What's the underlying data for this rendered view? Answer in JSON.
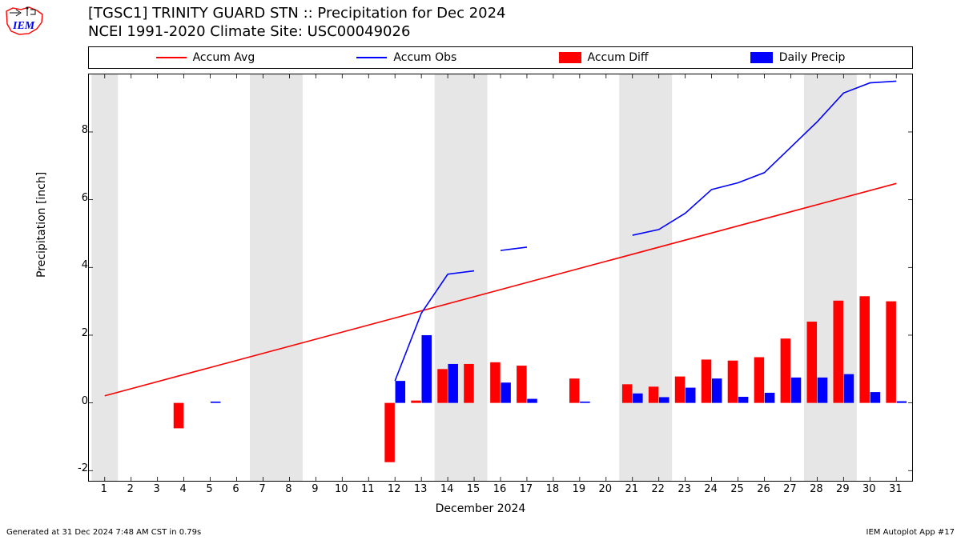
{
  "title_line1": "[TGSC1] TRINITY GUARD STN :: Precipitation for Dec 2024",
  "title_line2": "NCEI 1991-2020 Climate Site: USC00049026",
  "footer_left": "Generated at 31 Dec 2024 7:48 AM CST in 0.79s",
  "footer_right": "IEM Autoplot App #17",
  "ylabel": "Precipitation [inch]",
  "xlabel": "December 2024",
  "legend": [
    {
      "label": "Accum Avg",
      "type": "line",
      "color": "#ff0000"
    },
    {
      "label": "Accum Obs",
      "type": "line",
      "color": "#0000ff"
    },
    {
      "label": "Accum Diff",
      "type": "patch",
      "color": "#ff0000"
    },
    {
      "label": "Daily Precip",
      "type": "patch",
      "color": "#0000ff"
    }
  ],
  "chart": {
    "type": "mixed-line-bar",
    "x_days": [
      1,
      2,
      3,
      4,
      5,
      6,
      7,
      8,
      9,
      10,
      11,
      12,
      13,
      14,
      15,
      16,
      17,
      18,
      19,
      20,
      21,
      22,
      23,
      24,
      25,
      26,
      27,
      28,
      29,
      30,
      31
    ],
    "ylim": [
      -2.3,
      9.7
    ],
    "yticks": [
      -2,
      0,
      2,
      4,
      6,
      8
    ],
    "xlim": [
      0.4,
      31.6
    ],
    "background": "#ffffff",
    "weekend_fill": "#e6e6e6",
    "weekend_bands": [
      [
        0.5,
        1.5
      ],
      [
        6.5,
        8.5
      ],
      [
        13.5,
        15.5
      ],
      [
        20.5,
        22.5
      ],
      [
        27.5,
        29.5
      ]
    ],
    "line_width": 1.6,
    "bar_width": 0.38,
    "accum_avg": {
      "color": "#ff0000",
      "points": [
        [
          1,
          0.21
        ],
        [
          31,
          6.48
        ]
      ]
    },
    "accum_obs": {
      "color": "#0000ff",
      "segments": [
        [
          [
            12,
            0.65
          ],
          [
            13,
            2.65
          ],
          [
            14,
            3.8
          ],
          [
            15,
            3.9
          ]
        ],
        [
          [
            16,
            4.5
          ],
          [
            17,
            4.6
          ]
        ],
        [
          [
            21,
            4.95
          ],
          [
            22,
            5.12
          ],
          [
            23,
            5.6
          ],
          [
            24,
            6.3
          ],
          [
            25,
            6.5
          ],
          [
            26,
            6.8
          ],
          [
            27,
            7.55
          ],
          [
            28,
            8.3
          ],
          [
            29,
            9.15
          ],
          [
            30,
            9.45
          ],
          [
            31,
            9.5
          ]
        ]
      ]
    },
    "accum_diff": {
      "color": "#ff0000",
      "bars": [
        {
          "x": 4,
          "y": -0.75
        },
        {
          "x": 12,
          "y": -1.75
        },
        {
          "x": 13,
          "y": 0.07
        },
        {
          "x": 14,
          "y": 1.0
        },
        {
          "x": 15,
          "y": 1.15
        },
        {
          "x": 16,
          "y": 1.2
        },
        {
          "x": 17,
          "y": 1.1
        },
        {
          "x": 19,
          "y": 0.72
        },
        {
          "x": 21,
          "y": 0.55
        },
        {
          "x": 22,
          "y": 0.48
        },
        {
          "x": 23,
          "y": 0.78
        },
        {
          "x": 24,
          "y": 1.28
        },
        {
          "x": 25,
          "y": 1.25
        },
        {
          "x": 26,
          "y": 1.35
        },
        {
          "x": 27,
          "y": 1.9
        },
        {
          "x": 28,
          "y": 2.4
        },
        {
          "x": 29,
          "y": 3.02
        },
        {
          "x": 30,
          "y": 3.15
        },
        {
          "x": 31,
          "y": 3.0
        }
      ]
    },
    "daily_precip": {
      "color": "#0000ff",
      "bars": [
        {
          "x": 5,
          "y": 0.04
        },
        {
          "x": 12,
          "y": 0.65
        },
        {
          "x": 13,
          "y": 2.0
        },
        {
          "x": 14,
          "y": 1.15
        },
        {
          "x": 16,
          "y": 0.6
        },
        {
          "x": 17,
          "y": 0.12
        },
        {
          "x": 19,
          "y": 0.04
        },
        {
          "x": 21,
          "y": 0.28
        },
        {
          "x": 22,
          "y": 0.17
        },
        {
          "x": 23,
          "y": 0.45
        },
        {
          "x": 24,
          "y": 0.72
        },
        {
          "x": 25,
          "y": 0.18
        },
        {
          "x": 26,
          "y": 0.3
        },
        {
          "x": 27,
          "y": 0.75
        },
        {
          "x": 28,
          "y": 0.75
        },
        {
          "x": 29,
          "y": 0.85
        },
        {
          "x": 30,
          "y": 0.32
        },
        {
          "x": 31,
          "y": 0.05
        }
      ]
    },
    "tick_fontsize": 13,
    "label_fontsize": 14,
    "title_fontsize": 18,
    "border_color": "#000000"
  },
  "logo": {
    "outline_color": "#ff0000",
    "text_color": "#0000ff",
    "text": "IEM"
  }
}
